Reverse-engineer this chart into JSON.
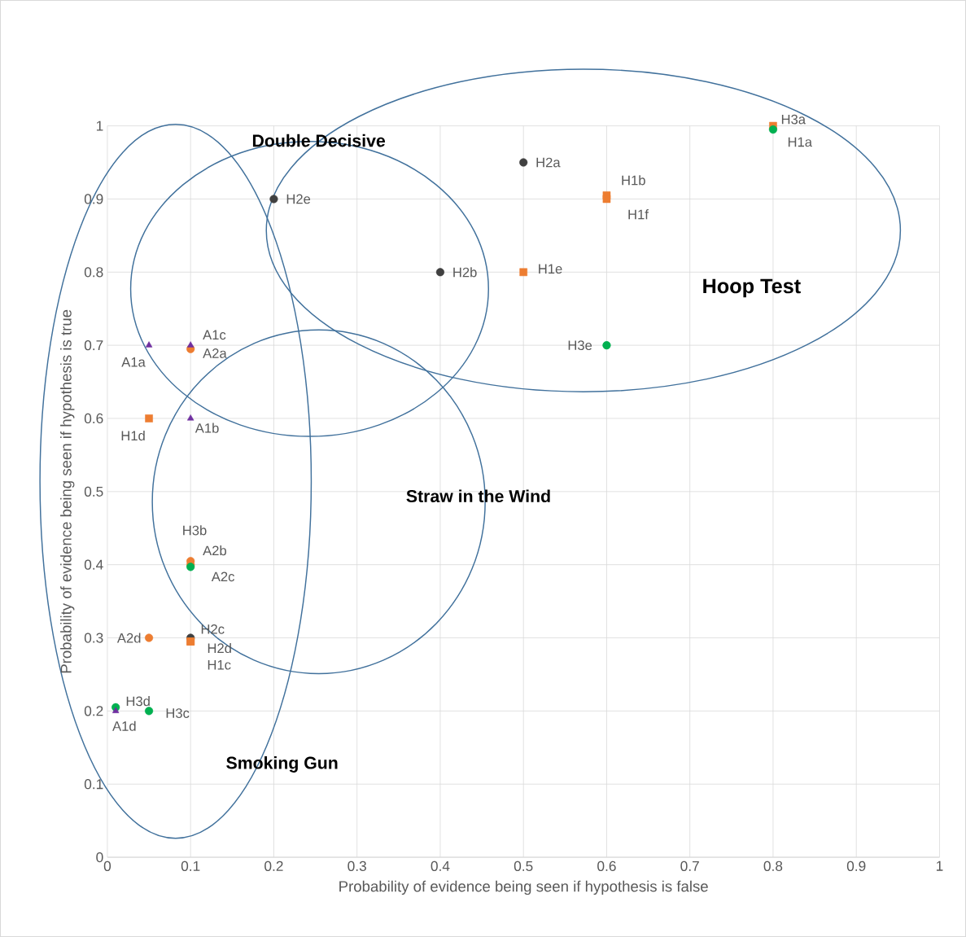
{
  "chart_data": {
    "type": "scatter",
    "xlabel": "Probability of evidence being seen if hypothesis is false",
    "ylabel": "Probability of evidence being seen if hypothesis is true",
    "xlim": [
      0,
      1
    ],
    "ylim": [
      0,
      1
    ],
    "xticks": [
      0,
      0.1,
      0.2,
      0.3,
      0.4,
      0.5,
      0.6,
      0.7,
      0.8,
      0.9,
      1
    ],
    "yticks": [
      0,
      0.1,
      0.2,
      0.3,
      0.4,
      0.5,
      0.6,
      0.7,
      0.8,
      0.9,
      1
    ],
    "grid": true,
    "series": [
      {
        "color": "#404040",
        "marker": "circle",
        "x": [
          0.5,
          0.2,
          0.4,
          0.1
        ],
        "values": [
          0.95,
          0.9,
          0.8,
          0.3
        ]
      },
      {
        "color": "#ed7d31",
        "marker": "square",
        "x": [
          0.8,
          0.6,
          0.6,
          0.5,
          0.05,
          0.1,
          0.1
        ],
        "values": [
          1.0,
          0.905,
          0.9,
          0.8,
          0.6,
          0.295,
          0.295
        ]
      },
      {
        "color": "#ed7d31",
        "marker": "circle",
        "x": [
          0.1,
          0.1,
          0.1,
          0.05
        ],
        "values": [
          0.695,
          0.405,
          0.4,
          0.3
        ]
      },
      {
        "color": "#00b050",
        "marker": "circle",
        "x": [
          0.8,
          0.6,
          0.1,
          0.01,
          0.05
        ],
        "values": [
          0.995,
          0.7,
          0.397,
          0.205,
          0.2
        ]
      },
      {
        "color": "#7030a0",
        "marker": "triangle",
        "x": [
          0.05,
          0.1,
          0.1,
          0.01
        ],
        "values": [
          0.7,
          0.7,
          0.6,
          0.2
        ]
      }
    ],
    "annotations": [
      "Double Decisive",
      "Hoop Test",
      "Straw in the Wind",
      "Smoking Gun",
      {
        "text": "H2a",
        "x": 0.5,
        "y": 0.95
      },
      {
        "text": "H2e",
        "x": 0.2,
        "y": 0.9
      },
      {
        "text": "H2b",
        "x": 0.4,
        "y": 0.8
      },
      {
        "text": "H2c",
        "x": 0.1,
        "y": 0.3
      },
      {
        "text": "H3a",
        "x": 0.8,
        "y": 1.0
      },
      {
        "text": "H1b",
        "x": 0.6,
        "y": 0.905
      },
      {
        "text": "H1f",
        "x": 0.6,
        "y": 0.9
      },
      {
        "text": "H1e",
        "x": 0.5,
        "y": 0.8
      },
      {
        "text": "H1d",
        "x": 0.05,
        "y": 0.6
      },
      {
        "text": "H2d",
        "x": 0.1,
        "y": 0.295
      },
      {
        "text": "H1c",
        "x": 0.1,
        "y": 0.295
      },
      {
        "text": "A2a",
        "x": 0.1,
        "y": 0.695
      },
      {
        "text": "A2b",
        "x": 0.1,
        "y": 0.405
      },
      {
        "text": "A2c",
        "x": 0.1,
        "y": 0.4
      },
      {
        "text": "A2d",
        "x": 0.05,
        "y": 0.3
      },
      {
        "text": "H1a",
        "x": 0.8,
        "y": 0.995
      },
      {
        "text": "H3e",
        "x": 0.6,
        "y": 0.7
      },
      {
        "text": "H3b",
        "x": 0.1,
        "y": 0.397
      },
      {
        "text": "H3d",
        "x": 0.01,
        "y": 0.205
      },
      {
        "text": "H3c",
        "x": 0.05,
        "y": 0.2
      },
      {
        "text": "A1a",
        "x": 0.05,
        "y": 0.7
      },
      {
        "text": "A1c",
        "x": 0.1,
        "y": 0.7
      },
      {
        "text": "A1b",
        "x": 0.1,
        "y": 0.6
      },
      {
        "text": "A1d",
        "x": 0.01,
        "y": 0.2
      }
    ]
  }
}
